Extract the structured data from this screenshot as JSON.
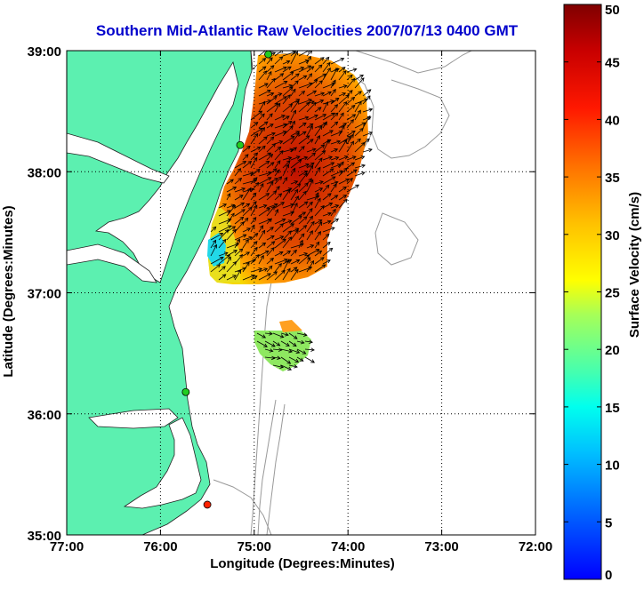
{
  "title": "Southern Mid-Atlantic Raw Velocities 2007/07/13 0400 GMT",
  "xlabel": "Longitude (Degrees:Minutes)",
  "ylabel": "Latitude (Degrees:Minutes)",
  "colorbar_label": "Surface Velocity (cm/s)",
  "colors": {
    "title": "#0000cc",
    "land": "#5cf0b0",
    "frame": "#000000",
    "bathymetry": "#999999",
    "station_green": "#22cc22",
    "station_red": "#ff2200"
  },
  "chart_data": {
    "type": "map-vector-field",
    "x_range": [
      -77,
      -72
    ],
    "y_range": [
      35,
      39
    ],
    "x_ticks": [
      "77:00",
      "76:00",
      "75:00",
      "74:00",
      "73:00",
      "72:00"
    ],
    "y_ticks": [
      "39:00",
      "38:00",
      "37:00",
      "36:00",
      "35:00"
    ],
    "grid": "dotted",
    "colorbar": {
      "min": 0,
      "max": 50,
      "ticks": [
        "0",
        "5",
        "10",
        "15",
        "20",
        "25",
        "30",
        "35",
        "40",
        "45",
        "50"
      ],
      "colormap": "jet"
    },
    "stations": [
      {
        "lon": -74.85,
        "lat": 38.97,
        "color": "green"
      },
      {
        "lon": -75.15,
        "lat": 38.22,
        "color": "green"
      },
      {
        "lon": -75.73,
        "lat": 36.18,
        "color": "green"
      },
      {
        "lon": -75.5,
        "lat": 35.25,
        "color": "red"
      }
    ],
    "velocity_regions": [
      {
        "name": "northern field",
        "lon_range": [
          -75.45,
          -74.1
        ],
        "lat_range": [
          37.08,
          38.95
        ],
        "speed_cm_s": [
          10,
          50
        ],
        "direction": "toward northeast/east"
      },
      {
        "name": "southern field",
        "lon_range": [
          -75.0,
          -74.55
        ],
        "lat_range": [
          36.35,
          36.68
        ],
        "speed_cm_s": [
          18,
          35
        ],
        "direction": "toward east-southeast"
      }
    ]
  }
}
